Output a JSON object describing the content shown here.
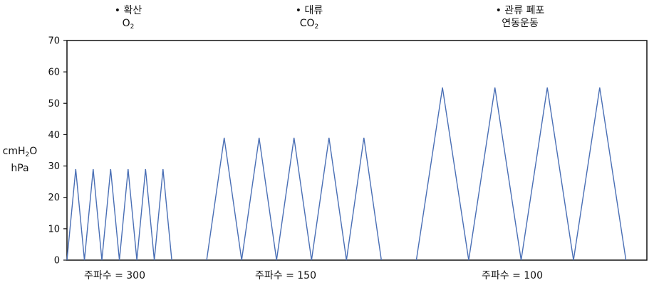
{
  "chart_data": {
    "type": "line",
    "ylim": [
      0,
      70
    ],
    "yticks": [
      "0",
      "10",
      "20",
      "30",
      "40",
      "50",
      "60",
      "70"
    ],
    "ylabel": {
      "line1_prefix": "cmH",
      "line1_sub": "2",
      "line1_suffix": "O",
      "line2": "hPa"
    },
    "line_color": "#4a6fb5",
    "groups": [
      {
        "label": "주파수 = 300",
        "bullet": "•",
        "annotation_title": "확산",
        "annotation_main": "O",
        "annotation_sub": "2",
        "peak": 29,
        "x": [
          0,
          2.5,
          5,
          7.5,
          10,
          12.5,
          15,
          17.5,
          20,
          22.5,
          25,
          27.5,
          30
        ],
        "y": [
          0,
          29,
          0,
          29,
          0,
          29,
          0,
          29,
          0,
          29,
          0,
          29,
          0
        ]
      },
      {
        "label": "주파수 = 150",
        "bullet": "•",
        "annotation_title": "대류",
        "annotation_main": "CO",
        "annotation_sub": "2",
        "peak": 39,
        "x": [
          40,
          45,
          50,
          55,
          60,
          65,
          70,
          75,
          80,
          85,
          90
        ],
        "y": [
          0,
          39,
          0,
          39,
          0,
          39,
          0,
          39,
          0,
          39,
          0
        ]
      },
      {
        "label": "주파수 = 100",
        "bullet": "•",
        "annotation_title": "관류 폐포",
        "annotation_main": "연동운동",
        "annotation_sub": "",
        "peak": 55,
        "x": [
          100,
          107.5,
          115,
          122.5,
          130,
          137.5,
          145,
          152.5,
          160
        ],
        "y": [
          0,
          55,
          0,
          55,
          0,
          55,
          0,
          55,
          0
        ]
      }
    ]
  }
}
